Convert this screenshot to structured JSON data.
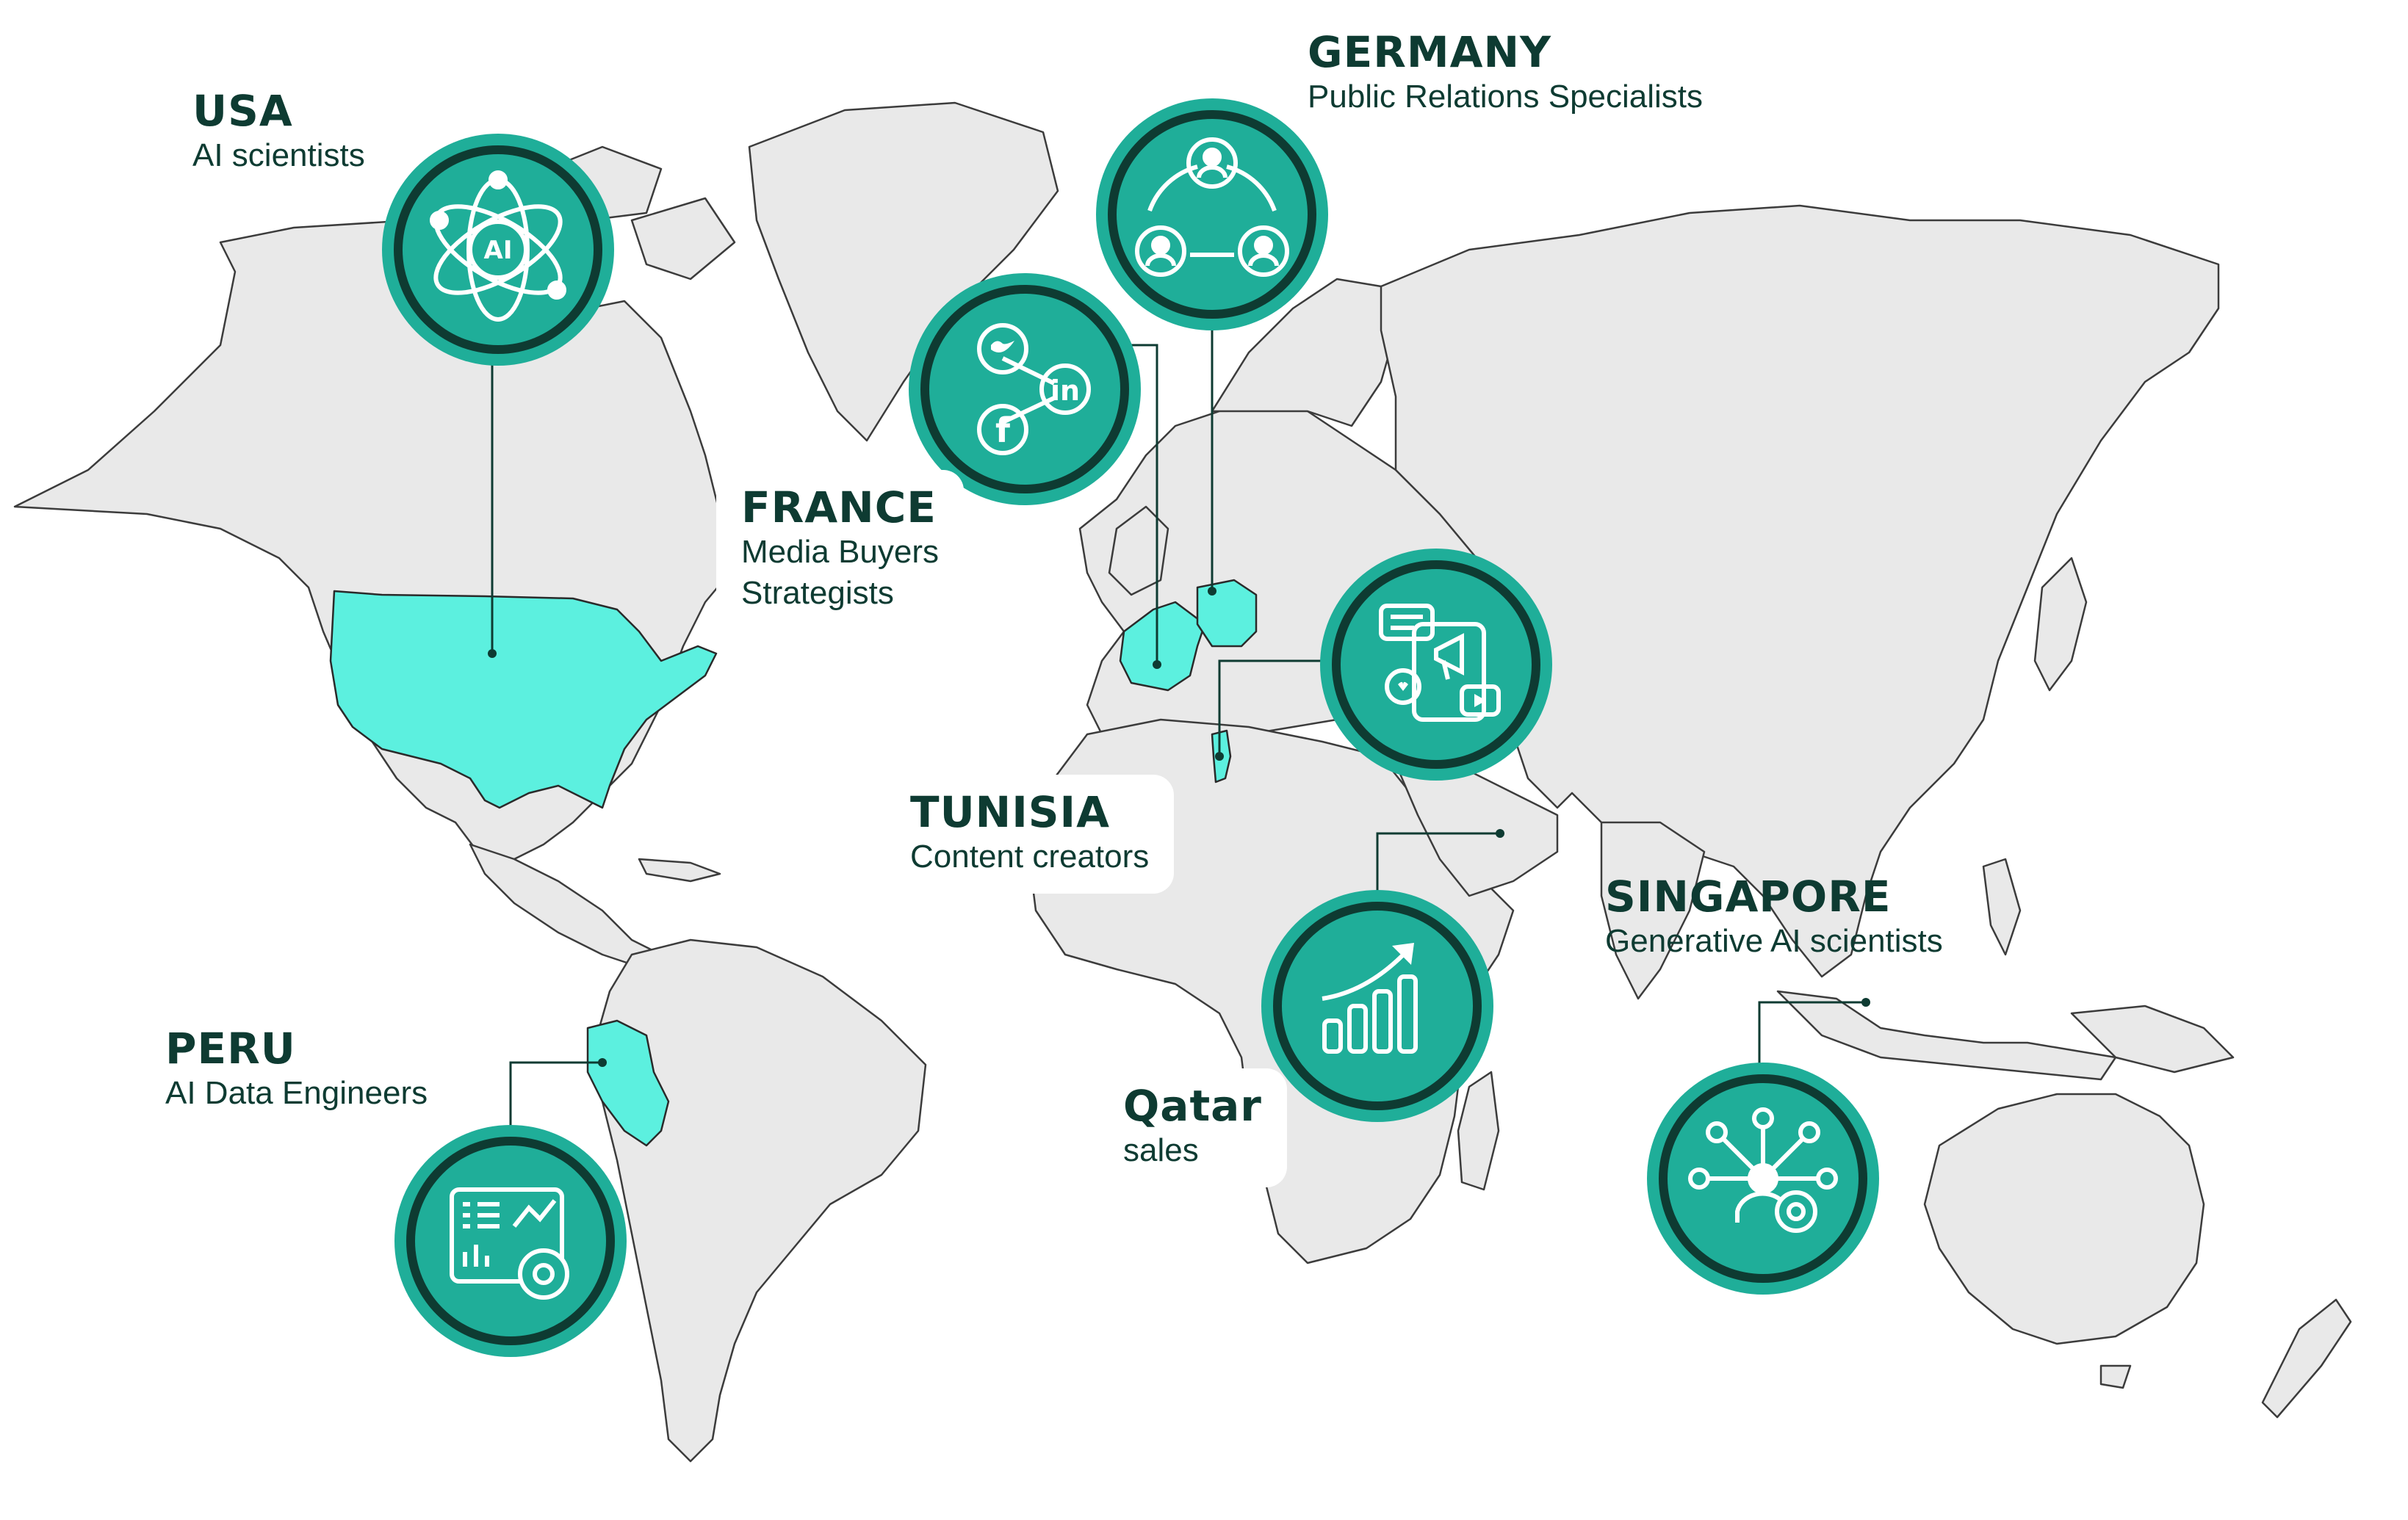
{
  "colors": {
    "land": "#e9e9e9",
    "border": "#3c3c3c",
    "highlight": "#5cf0df",
    "badge_fill": "#1fae99",
    "badge_ring": "#0e3b32",
    "badge_halo": "#1fae99",
    "text": "#0e3b32"
  },
  "locations": [
    {
      "id": "usa",
      "country": "USA",
      "roles": [
        "AI scientists"
      ],
      "icon": "ai-atom-icon"
    },
    {
      "id": "germany",
      "country": "GERMANY",
      "roles": [
        "Public Relations Specialists"
      ],
      "icon": "people-network-icon"
    },
    {
      "id": "france",
      "country": "FRANCE",
      "roles": [
        "Media Buyers",
        "Strategists"
      ],
      "icon": "social-media-icon"
    },
    {
      "id": "tunisia",
      "country": "TUNISIA",
      "roles": [
        "Content creators"
      ],
      "icon": "content-marketing-icon"
    },
    {
      "id": "qatar",
      "country": "Qatar",
      "roles": [
        "sales"
      ],
      "icon": "growth-chart-icon"
    },
    {
      "id": "singapore",
      "country": "SINGAPORE",
      "roles": [
        "Generative AI scientists"
      ],
      "icon": "ai-user-gear-icon"
    },
    {
      "id": "peru",
      "country": "PERU",
      "roles": [
        "AI Data Engineers"
      ],
      "icon": "data-dashboard-icon"
    }
  ]
}
